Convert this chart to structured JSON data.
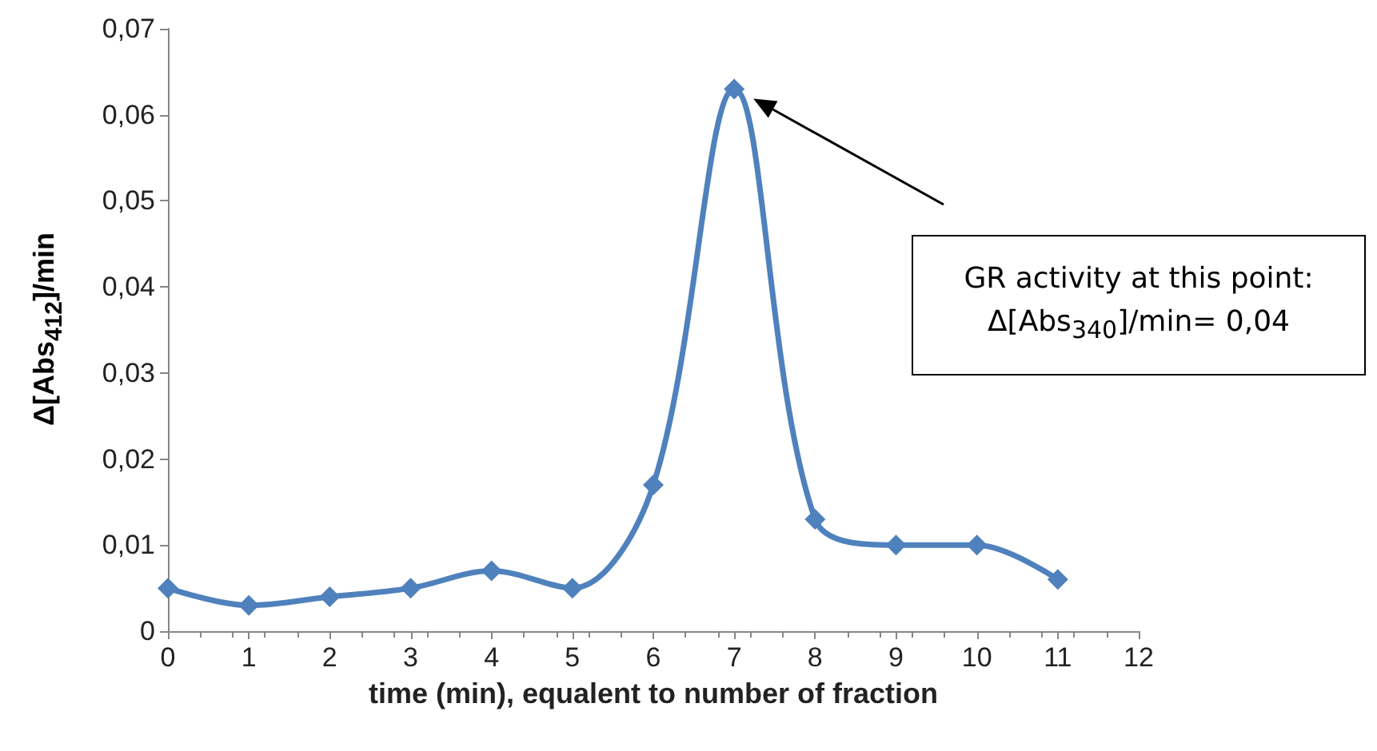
{
  "chart_data": {
    "type": "line",
    "xlabel": "time (min), equalent to number of fraction",
    "ylabel": "Δ[Abs$_{412}$]/min",
    "x": [
      0,
      1,
      2,
      3,
      4,
      5,
      6,
      7,
      8,
      9,
      10,
      11
    ],
    "values": [
      0.005,
      0.003,
      0.004,
      0.005,
      0.007,
      0.005,
      0.017,
      0.063,
      0.013,
      0.01,
      0.01,
      0.006
    ],
    "color": "#4f81bd",
    "marker": "diamond",
    "grid": false,
    "xlim": [
      0,
      12
    ],
    "xticks": [
      0,
      1,
      2,
      3,
      4,
      5,
      6,
      7,
      8,
      9,
      10,
      11,
      12
    ],
    "ylim": [
      0,
      0.07
    ],
    "yticks": [
      0,
      {
        "value": 0.01,
        "label": "0,01"
      },
      {
        "value": 0.02,
        "label": "0,02"
      },
      {
        "value": 0.03,
        "label": "0,03"
      },
      {
        "value": 0.04,
        "label": "0,04"
      },
      {
        "value": 0.05,
        "label": "0,05"
      },
      {
        "value": 0.06,
        "label": "0,06"
      },
      {
        "value": 0.07,
        "label": "0,07"
      }
    ],
    "annotations": [
      "GR activity at this point:\nΔ[Abs$_{340}$]/min= 0,04"
    ]
  }
}
